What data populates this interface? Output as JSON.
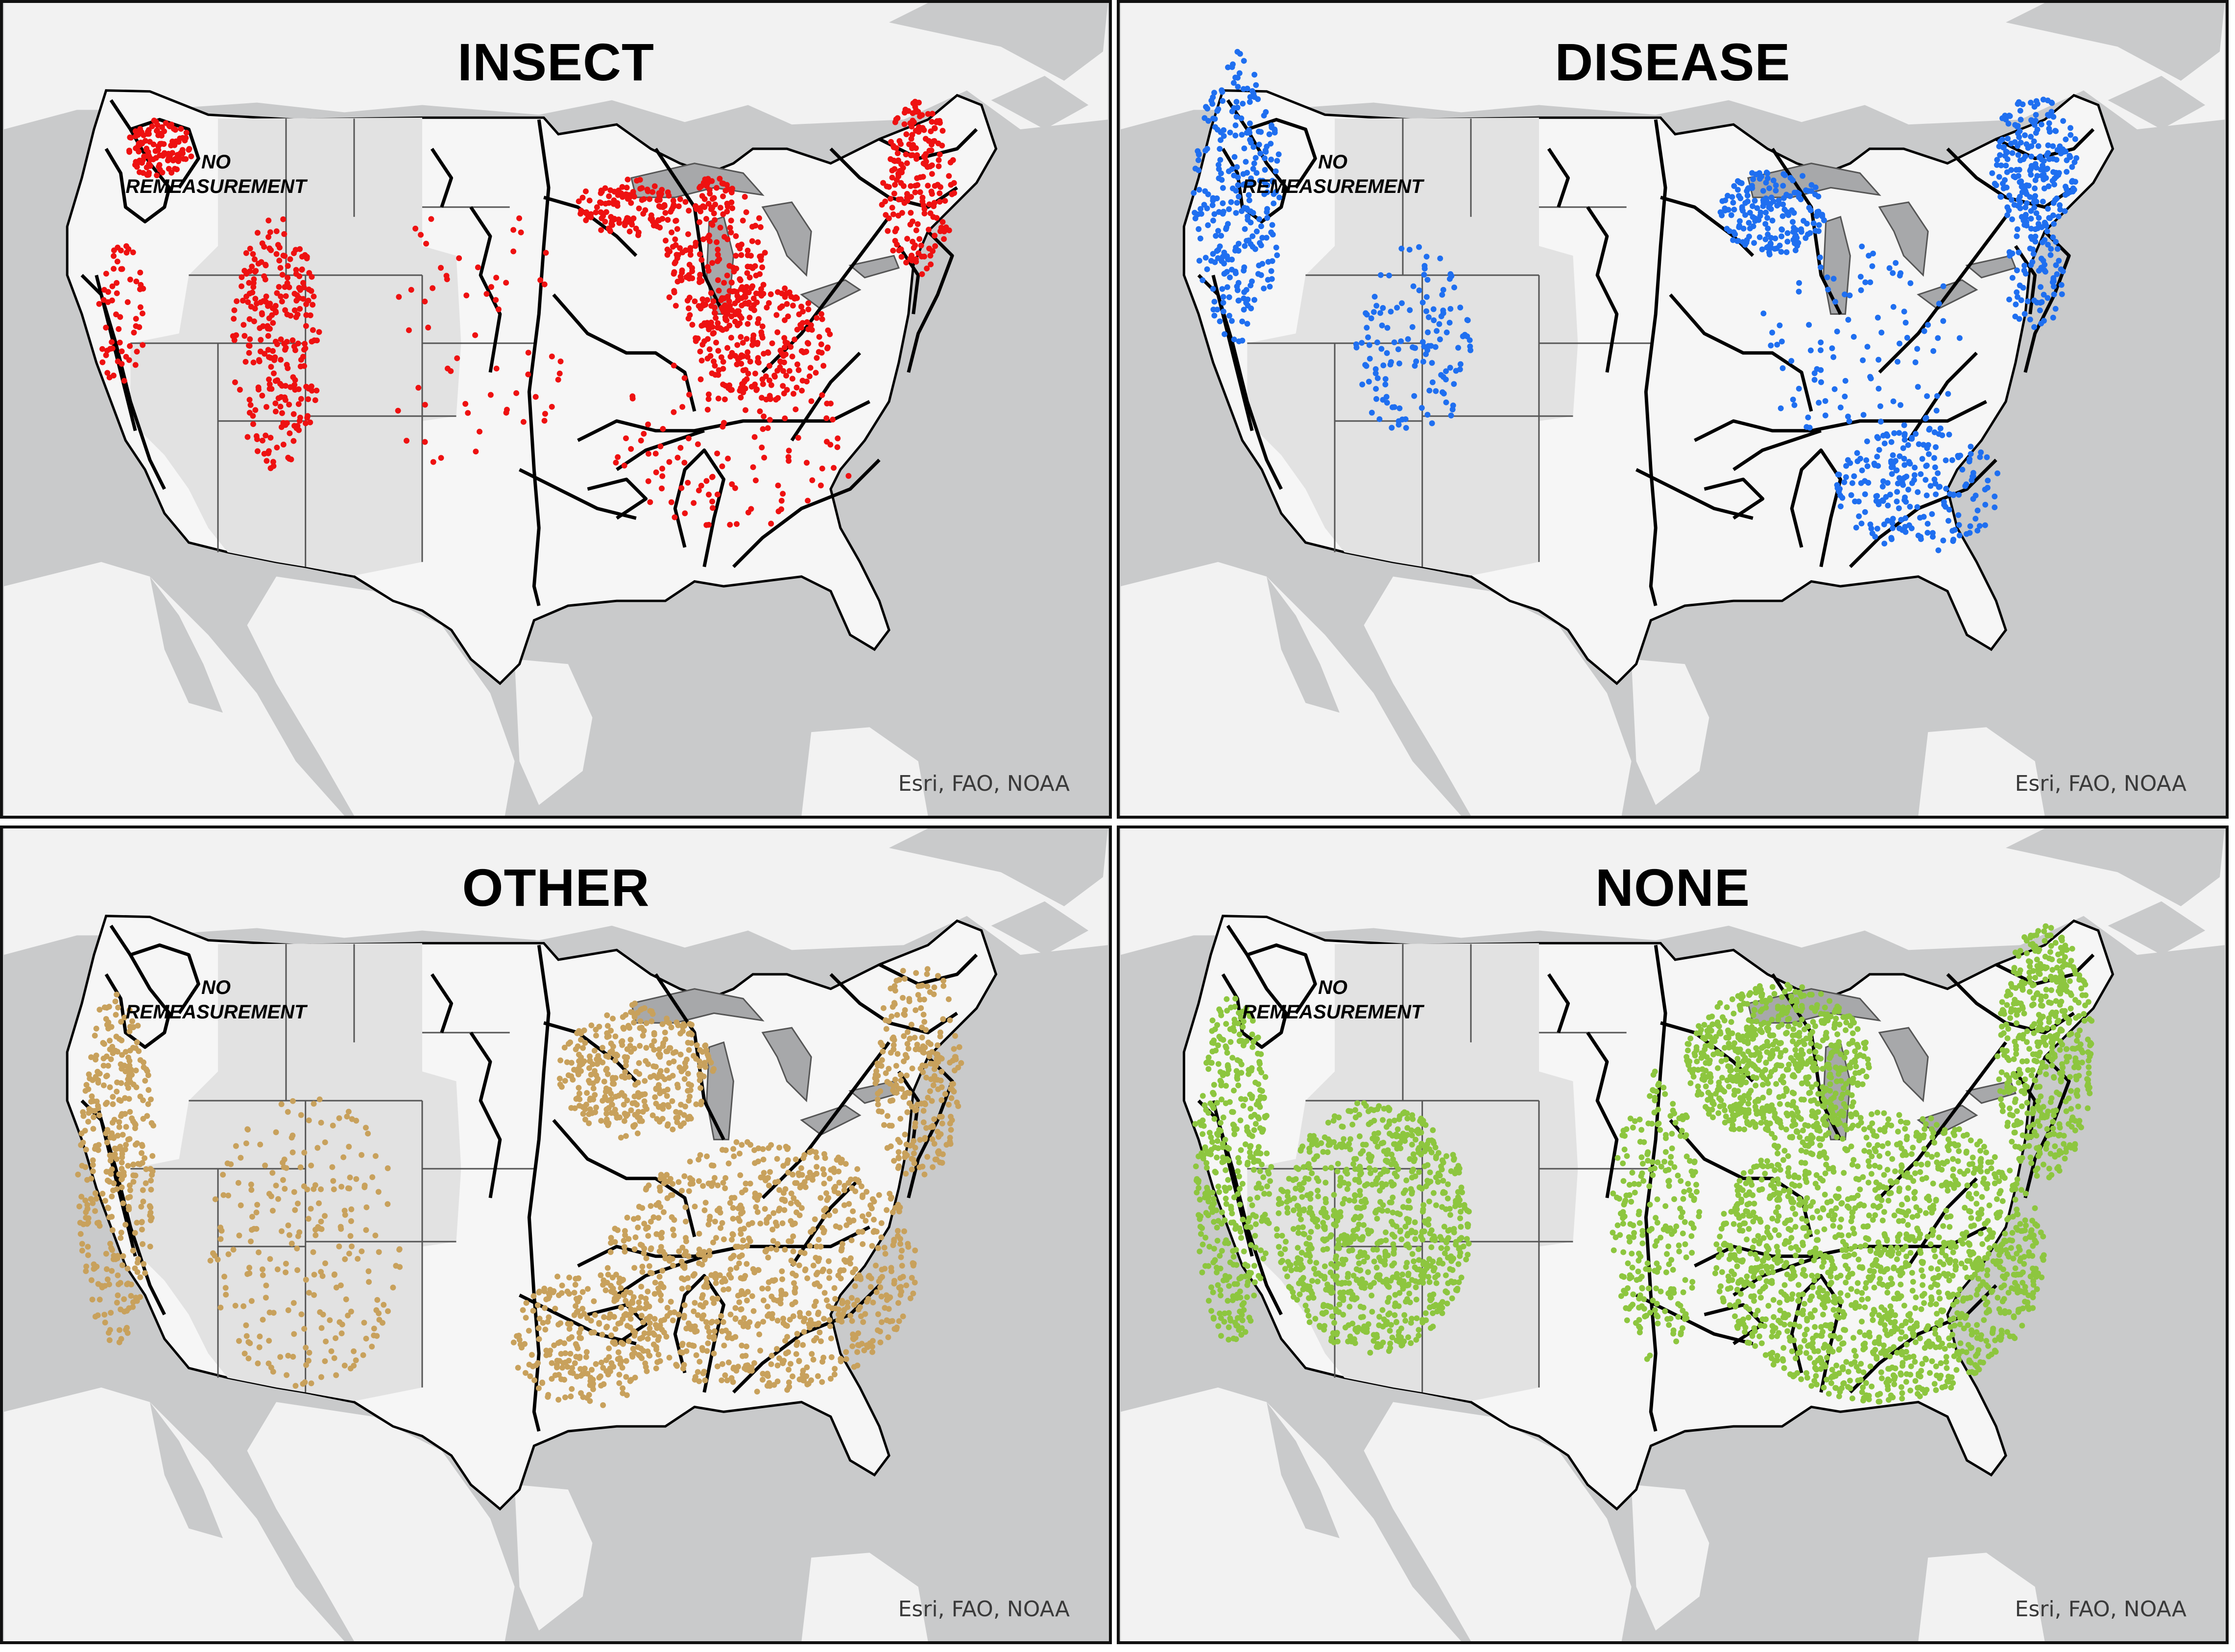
{
  "figure": {
    "panels": [
      {
        "title": "INSECT",
        "dot_color": "#ee1111",
        "hot_spots": "west-central mountains, upper midwest, northeast"
      },
      {
        "title": "DISEASE",
        "dot_color": "#1f6ff0",
        "hot_spots": "northwest, upper midwest, northeast, southeast"
      },
      {
        "title": "OTHER",
        "dot_color": "#c8a15c",
        "hot_spots": "east and west, sparse interior west"
      },
      {
        "title": "NONE",
        "dot_color": "#8dc63f",
        "hot_spots": "dense everywhere except great plains"
      }
    ],
    "no_remeasurement_label_line1": "NO",
    "no_remeasurement_label_line2": "REMEASUREMENT",
    "credit": "Esri, FAO, NOAA"
  },
  "colors": {
    "ocean": "#c9cacb",
    "land_outside_us": "#f2f2f2",
    "us_land": "#f5f5f5",
    "no_remeasurement_region": "#e1e1e1",
    "lakes": "#a7a8aa",
    "ecoregion_lines": "#000000"
  }
}
